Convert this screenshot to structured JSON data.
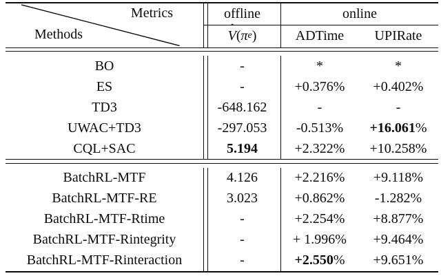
{
  "table": {
    "corner": {
      "metrics": "Metrics",
      "methods": "Methods"
    },
    "col_groups": {
      "offline": "offline",
      "online": "online"
    },
    "sub_headers": {
      "value_fn": {
        "hat": "ˆ",
        "v": "V",
        "open": "(",
        "pi": "π",
        "sub_e": "e",
        "close": ")"
      },
      "adtime": "ADTime",
      "upirate": "UPIRate"
    },
    "colors": {
      "ink": "#0a0a0a",
      "background": "#ffffff"
    },
    "sections": [
      {
        "name": "baselines",
        "rows": [
          {
            "method": "BO",
            "cells": [
              [
                {
                  "t": "-"
                }
              ],
              [
                {
                  "t": "*"
                }
              ],
              [
                {
                  "t": "*"
                }
              ]
            ]
          },
          {
            "method": "ES",
            "cells": [
              [
                {
                  "t": "-"
                }
              ],
              [
                {
                  "t": "+0.376%"
                }
              ],
              [
                {
                  "t": "+0.402%"
                }
              ]
            ]
          },
          {
            "method": "TD3",
            "cells": [
              [
                {
                  "t": "-648.162"
                }
              ],
              [
                {
                  "t": "-"
                }
              ],
              [
                {
                  "t": "-"
                }
              ]
            ]
          },
          {
            "method": "UWAC+TD3",
            "cells": [
              [
                {
                  "t": "-297.053"
                }
              ],
              [
                {
                  "t": "-0.513%"
                }
              ],
              [
                {
                  "t": "+16.061",
                  "b": true
                },
                {
                  "t": "%"
                }
              ]
            ]
          },
          {
            "method": "CQL+SAC",
            "cells": [
              [
                {
                  "t": "5.194",
                  "b": true
                }
              ],
              [
                {
                  "t": "+2.322%"
                }
              ],
              [
                {
                  "t": "+10.258%"
                }
              ]
            ]
          }
        ]
      },
      {
        "name": "batchrl-variants",
        "rows": [
          {
            "method": "BatchRL-MTF",
            "cells": [
              [
                {
                  "t": "4.126"
                }
              ],
              [
                {
                  "t": "+2.216%"
                }
              ],
              [
                {
                  "t": "+9.118%"
                }
              ]
            ]
          },
          {
            "method": "BatchRL-MTF-RE",
            "cells": [
              [
                {
                  "t": "3.023"
                }
              ],
              [
                {
                  "t": "+0.862%"
                }
              ],
              [
                {
                  "t": "-1.282%"
                }
              ]
            ]
          },
          {
            "method": "BatchRL-MTF-Rtime",
            "cells": [
              [
                {
                  "t": "-"
                }
              ],
              [
                {
                  "t": "+2.254%"
                }
              ],
              [
                {
                  "t": "+8.877%"
                }
              ]
            ]
          },
          {
            "method": "BatchRL-MTF-Rintegrity",
            "cells": [
              [
                {
                  "t": "-"
                }
              ],
              [
                {
                  "t": "+ 1.996%"
                }
              ],
              [
                {
                  "t": "+9.464%"
                }
              ]
            ]
          },
          {
            "method": "BatchRL-MTF-Rinteraction",
            "cells": [
              [
                {
                  "t": "-"
                }
              ],
              [
                {
                  "t": "+2.550",
                  "b": true
                },
                {
                  "t": "%"
                }
              ],
              [
                {
                  "t": "+9.651%"
                }
              ]
            ]
          }
        ]
      }
    ]
  }
}
